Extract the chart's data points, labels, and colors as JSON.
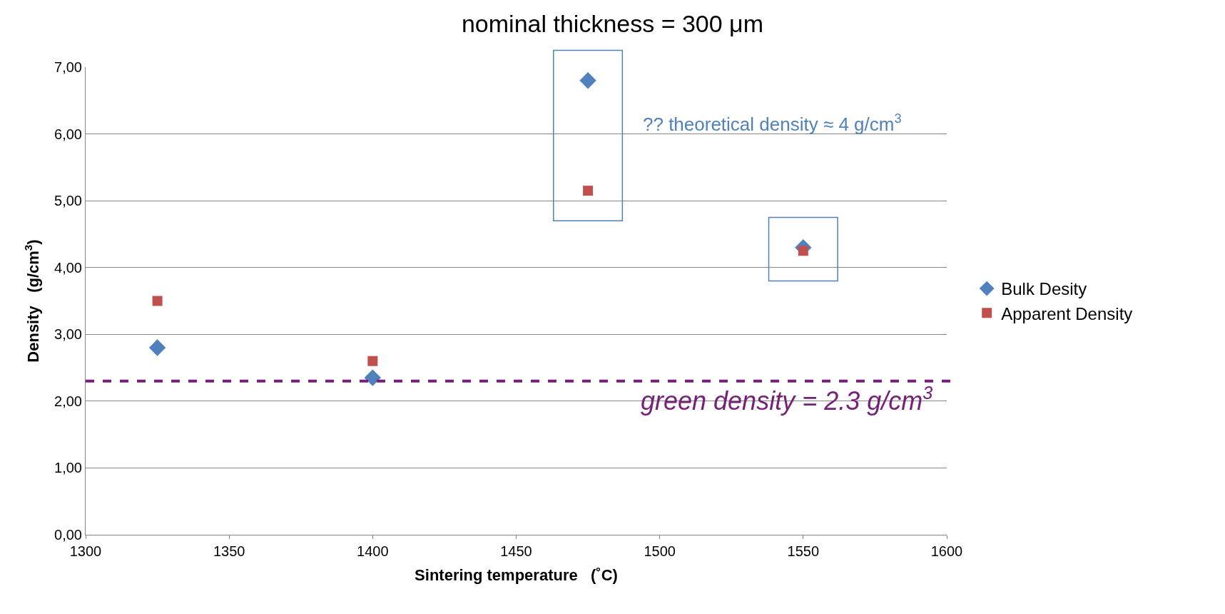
{
  "chart_data": {
    "type": "scatter",
    "title": "nominal thickness = 300 μm",
    "xlabel": "Sintering temperature   (˚C)",
    "ylabel": "Density   (g/cm$^{3}$)",
    "x": [
      1325,
      1400,
      1475,
      1550
    ],
    "series": [
      {
        "name": "Bulk Desity",
        "color": "#4f81bd",
        "marker": "diamond",
        "values": [
          2.8,
          2.35,
          6.8,
          4.3
        ]
      },
      {
        "name": "Apparent Density",
        "color": "#c0504d",
        "marker": "square",
        "values": [
          3.5,
          2.6,
          5.15,
          4.25
        ]
      }
    ],
    "xlim": [
      1300,
      1600
    ],
    "xticks": [
      1300,
      1350,
      1400,
      1450,
      1500,
      1550,
      1600
    ],
    "ylim": [
      0,
      7
    ],
    "yticks": [
      {
        "value": 0,
        "label": "0,00"
      },
      {
        "value": 1,
        "label": "1,00"
      },
      {
        "value": 2,
        "label": "2,00"
      },
      {
        "value": 3,
        "label": "3,00"
      },
      {
        "value": 4,
        "label": "4,00"
      },
      {
        "value": 5,
        "label": "5,00"
      },
      {
        "value": 6,
        "label": "6,00"
      },
      {
        "value": 7,
        "label": "7,00"
      }
    ],
    "ref_lines": [
      {
        "axis": "y",
        "value": 2.3,
        "label": "green density = 2.3 g/cm$^{3}$",
        "color": "#77207a",
        "line_style": "dashed"
      }
    ],
    "annotations": [
      "?? theoretical density ≈ 4 g/cm$^{3}$"
    ],
    "grid": "y",
    "legend": "right"
  }
}
